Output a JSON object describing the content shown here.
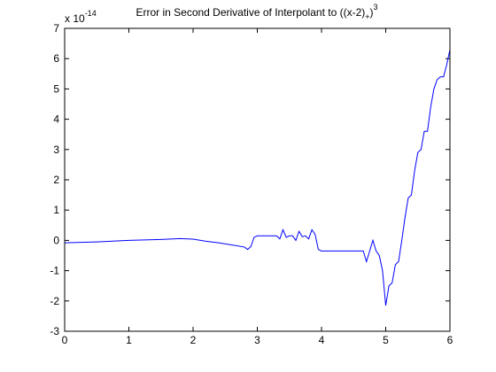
{
  "chart_data": {
    "type": "line",
    "title": {
      "prefix": "Error in Second Derivative of Interpolant to ((x-2)",
      "subscript": "+",
      "close": ")",
      "superscript": "3"
    },
    "xlabel": "",
    "ylabel": "",
    "exponent_label": {
      "base": "x 10",
      "exp": "-14"
    },
    "xlim": [
      0,
      6
    ],
    "ylim": [
      -3,
      7
    ],
    "x_ticks": [
      0,
      1,
      2,
      3,
      4,
      5,
      6
    ],
    "y_ticks": [
      -3,
      -2,
      -1,
      0,
      1,
      2,
      3,
      4,
      5,
      6,
      7
    ],
    "x_tick_labels": [
      "0",
      "1",
      "2",
      "3",
      "4",
      "5",
      "6"
    ],
    "y_tick_labels": [
      "-3",
      "-2",
      "-1",
      "0",
      "1",
      "2",
      "3",
      "4",
      "5",
      "6",
      "7"
    ],
    "grid": false,
    "line_color": "#0000ff",
    "series": [
      {
        "x": [
          0,
          0.5,
          1.0,
          1.5,
          1.8,
          2.0,
          2.2,
          2.4,
          2.6,
          2.8,
          2.85,
          2.9,
          2.95,
          3.0,
          3.2,
          3.3,
          3.35,
          3.4,
          3.45,
          3.5,
          3.55,
          3.6,
          3.65,
          3.7,
          3.75,
          3.8,
          3.85,
          3.9,
          3.95,
          4.0,
          4.2,
          4.5,
          4.65,
          4.7,
          4.8,
          4.85,
          4.9,
          4.95,
          5.0,
          5.05,
          5.1,
          5.15,
          5.2,
          5.25,
          5.3,
          5.35,
          5.4,
          5.45,
          5.5,
          5.55,
          5.6,
          5.65,
          5.7,
          5.75,
          5.8,
          5.85,
          5.9,
          5.95,
          6.0
        ],
        "y": [
          -0.08,
          -0.05,
          0.0,
          0.03,
          0.06,
          0.04,
          -0.03,
          -0.08,
          -0.15,
          -0.22,
          -0.3,
          -0.2,
          0.1,
          0.15,
          0.15,
          0.15,
          0.05,
          0.35,
          0.1,
          0.15,
          0.15,
          0.0,
          0.3,
          0.12,
          0.15,
          0.05,
          0.35,
          0.2,
          -0.3,
          -0.35,
          -0.35,
          -0.35,
          -0.35,
          -0.7,
          0.0,
          -0.35,
          -0.5,
          -1.0,
          -2.15,
          -1.5,
          -1.4,
          -0.8,
          -0.7,
          0.0,
          0.75,
          1.4,
          1.5,
          2.3,
          2.9,
          3.0,
          3.6,
          3.6,
          4.4,
          5.0,
          5.3,
          5.4,
          5.4,
          5.8,
          6.3
        ]
      }
    ]
  }
}
